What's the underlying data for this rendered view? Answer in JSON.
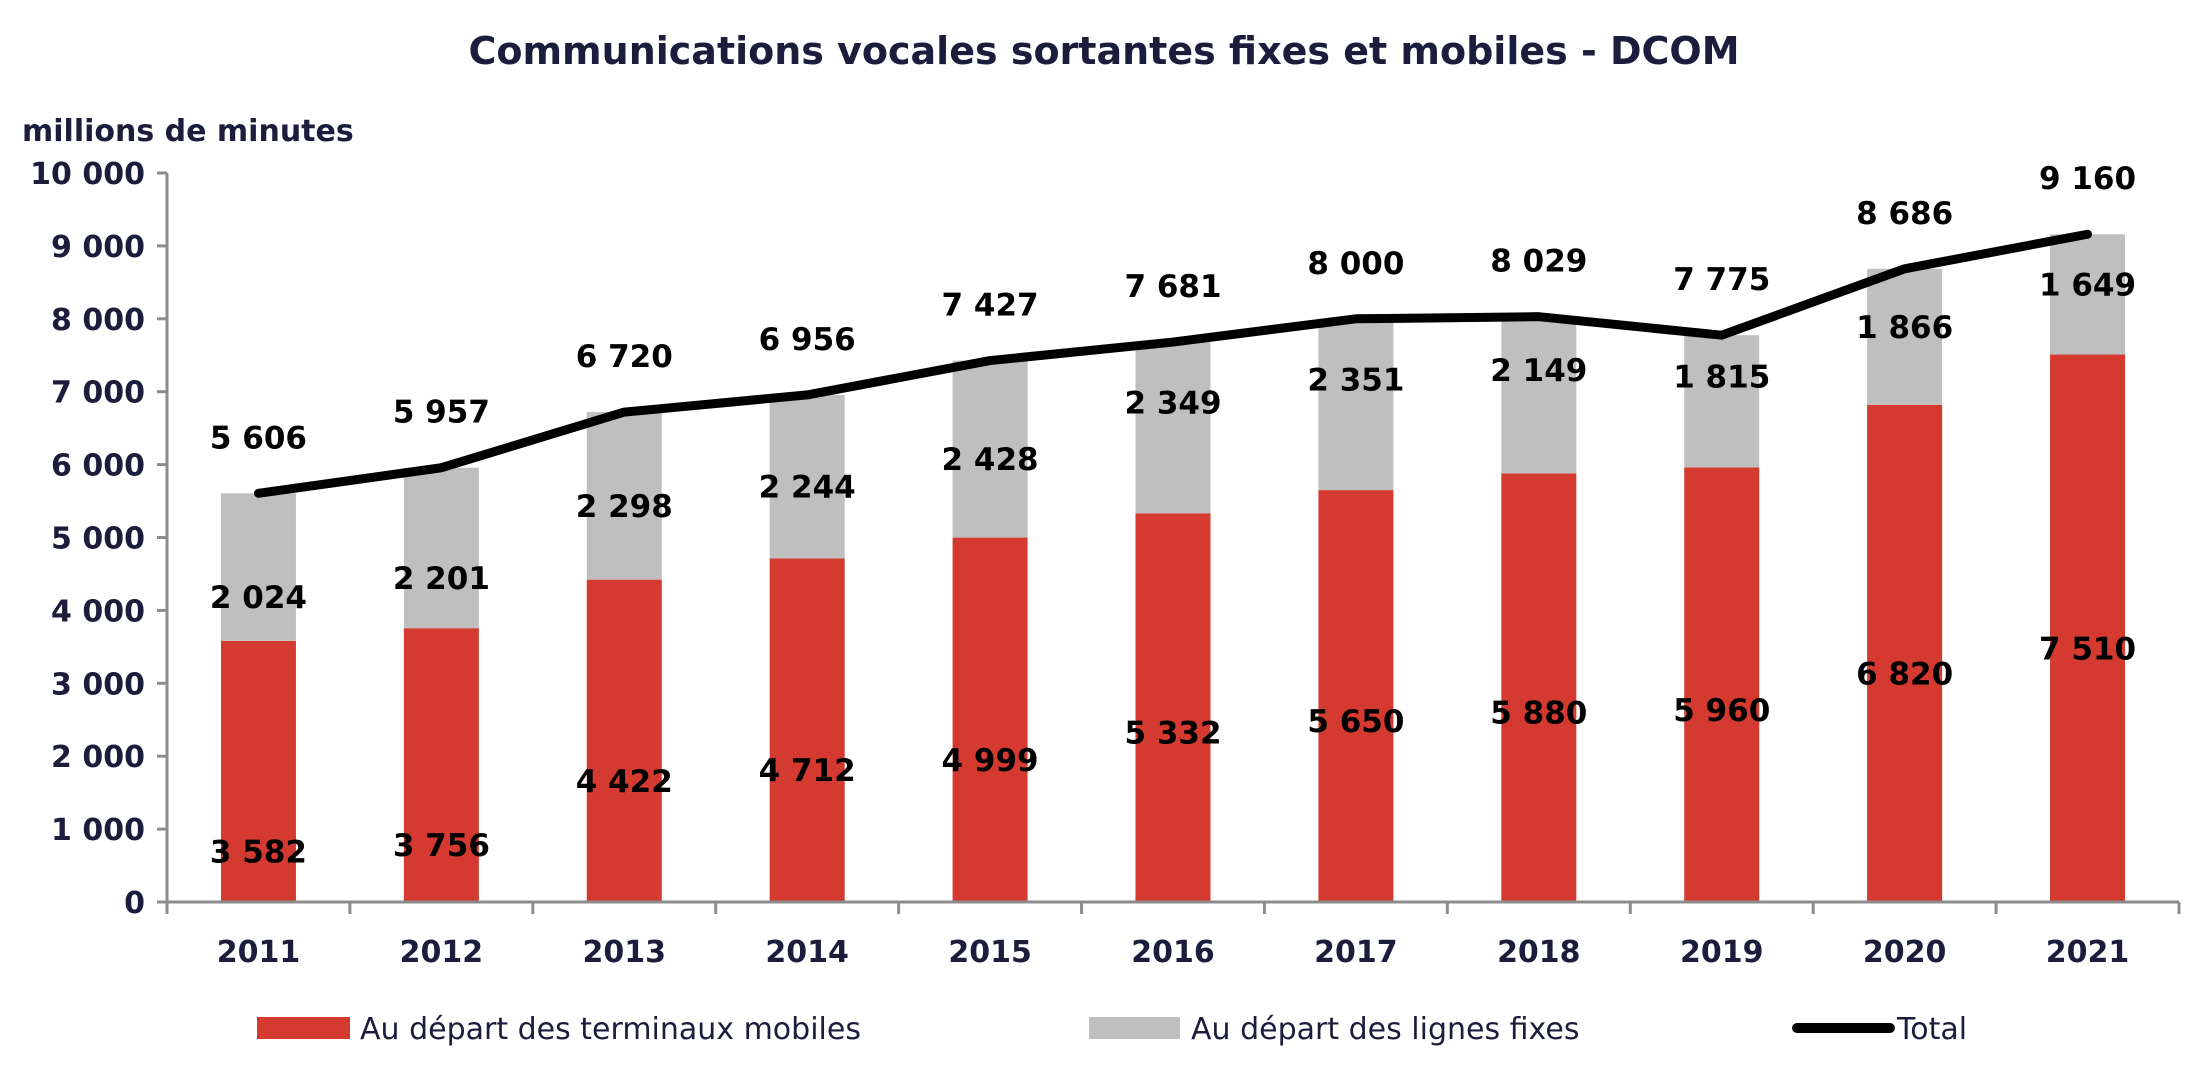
{
  "chart_data": {
    "type": "bar",
    "stacked": true,
    "title": "Communications vocales sortantes fixes et mobiles - DCOM",
    "ylabel": "millions de minutes",
    "xlabel": "",
    "ylim": [
      0,
      10000
    ],
    "yticks": [
      "0",
      "1 000",
      "2 000",
      "3 000",
      "4 000",
      "5 000",
      "6 000",
      "7 000",
      "8 000",
      "9 000",
      "10 000"
    ],
    "categories": [
      "2011",
      "2012",
      "2013",
      "2014",
      "2015",
      "2016",
      "2017",
      "2018",
      "2019",
      "2020",
      "2021"
    ],
    "grid": false,
    "legend_position": "bottom",
    "series": [
      {
        "name": "Au départ des terminaux mobiles",
        "kind": "bar",
        "color": "#d43a30",
        "values": [
          3582,
          3756,
          4422,
          4712,
          4999,
          5332,
          5650,
          5880,
          5960,
          6820,
          7510
        ],
        "labels": [
          "3 582",
          "3 756",
          "4 422",
          "4 712",
          "4 999",
          "5 332",
          "5 650",
          "5 880",
          "5 960",
          "6 820",
          "7 510"
        ]
      },
      {
        "name": "Au départ des lignes fixes",
        "kind": "bar",
        "color": "#bfbfbf",
        "values": [
          2024,
          2201,
          2298,
          2244,
          2428,
          2349,
          2351,
          2149,
          1815,
          1866,
          1649
        ],
        "labels": [
          "2 024",
          "2 201",
          "2 298",
          "2 244",
          "2 428",
          "2 349",
          "2 351",
          "2 149",
          "1 815",
          "1 866",
          "1 649"
        ]
      },
      {
        "name": "Total",
        "kind": "line",
        "color": "#000000",
        "values": [
          5606,
          5957,
          6720,
          6956,
          7427,
          7681,
          8000,
          8029,
          7775,
          8686,
          9160
        ],
        "labels": [
          "5 606",
          "5 957",
          "6 720",
          "6 956",
          "7 427",
          "7 681",
          "8 000",
          "8 029",
          "7 775",
          "8 686",
          "9 160"
        ]
      }
    ],
    "text_color": "#1c1c3c"
  }
}
